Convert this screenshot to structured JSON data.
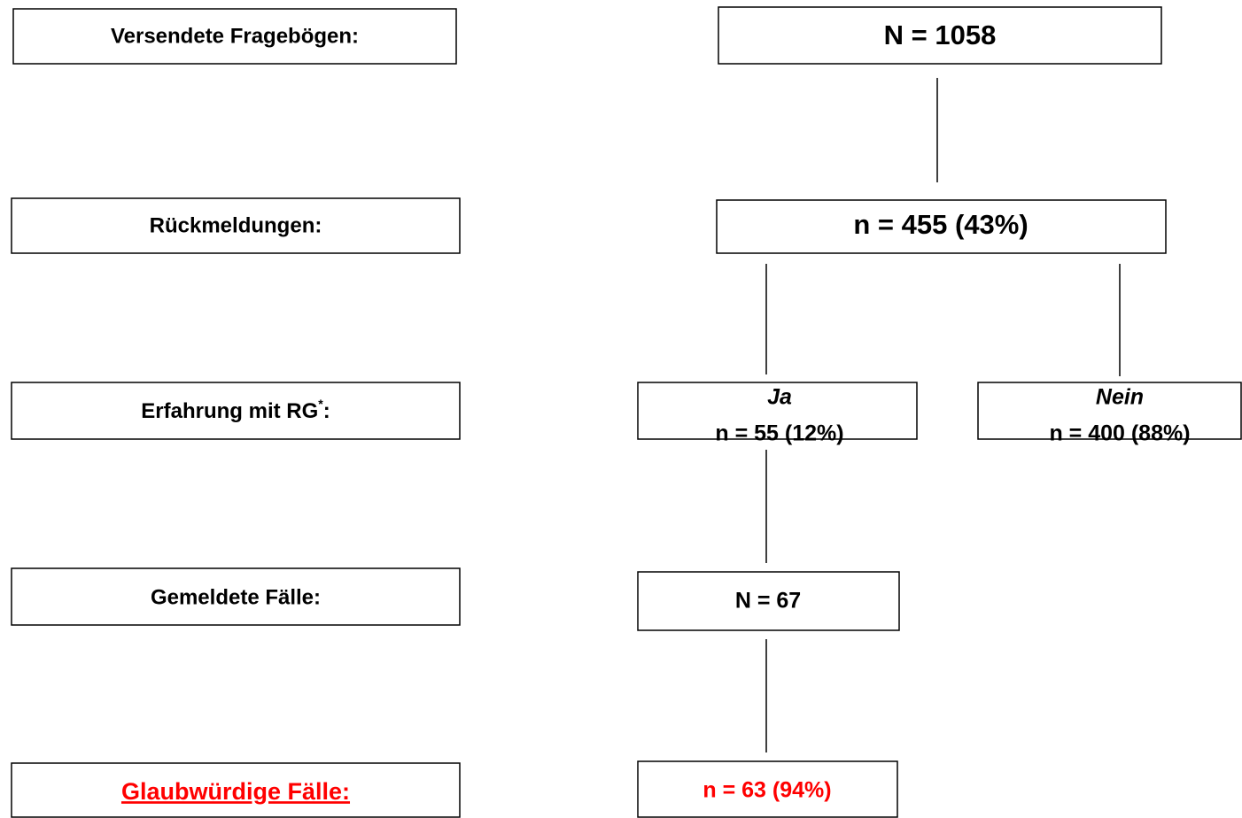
{
  "stages": [
    {
      "label": "Versendete Fragebögen:"
    },
    {
      "label": "Rückmeldungen:"
    },
    {
      "label": "Erfahrung mit RG",
      "label_sup": "*",
      "label_end": ":"
    },
    {
      "label": "Gemeldete Fälle:"
    },
    {
      "label": "Glaubwürdige Fälle:"
    }
  ],
  "nodes": [
    {
      "text": "N = 1058"
    },
    {
      "text": "n = 455 (43%)"
    },
    {
      "heading": "Ja",
      "text": "n = 55 (12%)"
    },
    {
      "heading": "Nein",
      "text": "n = 400 (88%)"
    },
    {
      "text": "N = 67"
    },
    {
      "text": "n = 63 (94%)"
    }
  ]
}
